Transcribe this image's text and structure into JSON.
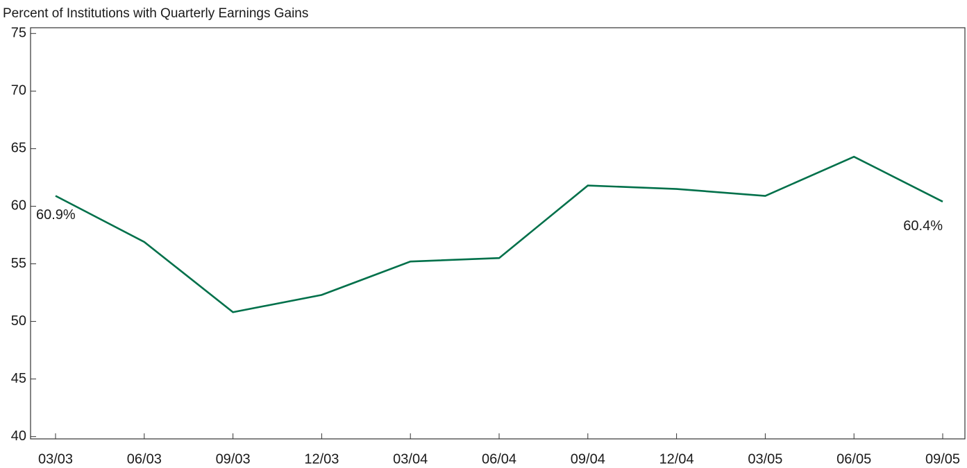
{
  "chart_data": {
    "type": "line",
    "title": "Percent of Institutions with Quarterly Earnings Gains",
    "categories": [
      "03/03",
      "06/03",
      "09/03",
      "12/03",
      "03/04",
      "06/04",
      "09/04",
      "12/04",
      "03/05",
      "06/05",
      "09/05"
    ],
    "series": [
      {
        "name": null,
        "color": "#00704a",
        "values": [
          60.9,
          56.9,
          50.8,
          52.3,
          55.2,
          55.5,
          61.8,
          61.5,
          60.9,
          64.3,
          60.4
        ],
        "value_labels": [
          "60.9%",
          null,
          null,
          null,
          null,
          null,
          null,
          null,
          null,
          null,
          "60.4%"
        ]
      }
    ],
    "ylim": [
      39.8,
      75.5
    ],
    "yticks": [
      40,
      45,
      50,
      55,
      60,
      65,
      70,
      75
    ],
    "grid": false
  }
}
